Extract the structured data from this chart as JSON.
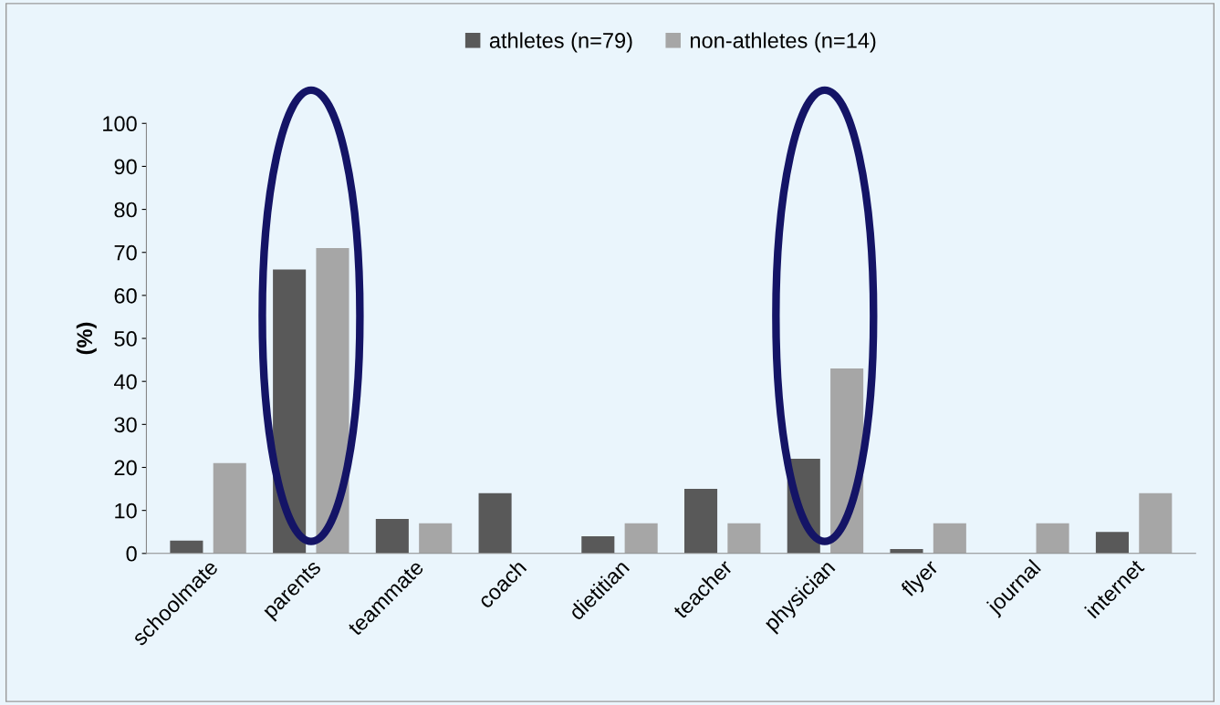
{
  "chart_data": {
    "type": "bar",
    "ylabel": "(%)",
    "categories": [
      "schoolmate",
      "parents",
      "teammate",
      "coach",
      "dietitian",
      "teacher",
      "physician",
      "flyer",
      "journal",
      "internet"
    ],
    "series": [
      {
        "name": "athletes (n=79)",
        "color": "#595959",
        "values": [
          3,
          66,
          8,
          14,
          4,
          15,
          22,
          1,
          0,
          5
        ]
      },
      {
        "name": "non-athletes (n=14)",
        "color": "#a6a6a6",
        "values": [
          21,
          71,
          7,
          0,
          7,
          7,
          43,
          7,
          7,
          14
        ]
      }
    ],
    "ylim": [
      0,
      100
    ],
    "yticks": [
      0,
      10,
      20,
      30,
      40,
      50,
      60,
      70,
      80,
      90,
      100
    ],
    "grid": false,
    "legend": "top"
  }
}
